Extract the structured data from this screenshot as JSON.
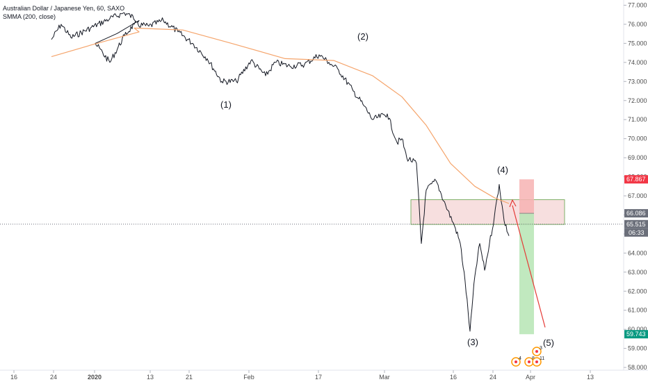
{
  "header": {
    "symbol_title": "Australian Dollar / Japanese Yen, 60, SAXO",
    "indicator": "SMMA (200, close)"
  },
  "colors": {
    "price": "#131722",
    "smma": "#f5a46b",
    "stop_zone": "#f7b3b3",
    "target_zone": "#b6e5b4",
    "entry_box_fill": "#f6d9d9",
    "entry_box_stroke": "#7fb069",
    "projection": "#e53935",
    "tag_red": "#f23645",
    "tag_green": "#089981",
    "tag_grey": "#6b6f7a"
  },
  "chart_data": {
    "type": "line",
    "title": "Australian Dollar / Japanese Yen, 60, SAXO",
    "xlabel": "",
    "ylabel": "",
    "ylim": [
      57.8,
      77.3
    ],
    "grid": false,
    "x_ticks": [
      "16",
      "24",
      "2020",
      "13",
      "21",
      "Feb",
      "17",
      "Mar",
      "16",
      "24",
      "Apr",
      "13"
    ],
    "y_ticks": [
      "77.000",
      "76.000",
      "75.000",
      "74.000",
      "73.000",
      "72.000",
      "71.000",
      "70.000",
      "69.000",
      "68.000",
      "67.000",
      "66.000",
      "65.000",
      "64.000",
      "63.000",
      "62.000",
      "61.000",
      "60.000",
      "59.000",
      "58.000"
    ],
    "series": [
      {
        "name": "",
        "role": "price",
        "x": [
          "Dec 12",
          "Dec 14",
          "Dec 16",
          "Dec 20",
          "Dec 24",
          "Dec 27",
          "Dec 30",
          "Jan 2",
          "Jan 5",
          "Jan 8",
          "Jan 10",
          "Jan 13",
          "Jan 16",
          "Jan 19",
          "Jan 22",
          "Jan 25",
          "Jan 28",
          "Jan 31",
          "Feb 3",
          "Feb 6",
          "Feb 8",
          "Feb 11",
          "Feb 14",
          "Feb 17",
          "Feb 19",
          "Feb 21",
          "Feb 24",
          "Feb 26",
          "Feb 28",
          "Mar 2",
          "Mar 4",
          "Mar 5",
          "Mar 6",
          "Mar 8",
          "Mar 9",
          "Mar 10",
          "Mar 12",
          "Mar 14",
          "Mar 16",
          "Mar 17",
          "Mar 18",
          "Mar 19",
          "Mar 20",
          "Mar 21",
          "Mar 22",
          "Mar 23",
          "Mar 24",
          "Mar 25",
          "Mar 26",
          "Mar 27"
        ],
        "values": [
          75.2,
          76.0,
          75.3,
          75.8,
          76.3,
          76.6,
          76.2,
          75.0,
          74.0,
          75.4,
          76.0,
          75.9,
          76.2,
          75.6,
          75.0,
          74.2,
          73.0,
          73.0,
          74.1,
          73.3,
          74.0,
          73.8,
          73.9,
          74.4,
          74.0,
          73.6,
          72.5,
          71.8,
          71.0,
          71.3,
          69.8,
          70.0,
          69.0,
          68.7,
          64.5,
          67.3,
          67.8,
          66.5,
          65.3,
          64.5,
          62.5,
          59.9,
          62.8,
          64.5,
          63.1,
          64.5,
          65.9,
          67.6,
          65.7,
          64.9
        ]
      },
      {
        "name": "SMMA (200, close)",
        "role": "smma",
        "x": [
          "Dec 12",
          "Dec 20",
          "Dec 30",
          "Jan 10",
          "Jan 20",
          "Jan 30",
          "Feb 10",
          "Feb 20",
          "Feb 28",
          "Mar 5",
          "Mar 10",
          "Mar 15",
          "Mar 20",
          "Mar 24",
          "Mar 27"
        ],
        "values": [
          74.3,
          74.9,
          75.6,
          75.8,
          75.7,
          75.0,
          74.2,
          74.1,
          73.3,
          72.2,
          70.7,
          68.7,
          67.5,
          66.9,
          66.6
        ]
      }
    ],
    "wave_labels": [
      "(1)",
      "(2)",
      "(3)",
      "(4)",
      "(5)"
    ],
    "price_tags": [
      {
        "value": 67.867,
        "label": "67.867",
        "color": "red"
      },
      {
        "value": 66.086,
        "label": "66.086",
        "color": "grey"
      },
      {
        "value": 65.515,
        "label": "65.515",
        "color": "grey"
      },
      {
        "countdown": "06:33"
      },
      {
        "value": 59.743,
        "label": "59.743",
        "color": "green"
      }
    ],
    "position": {
      "entry": 66.086,
      "stop": 67.867,
      "target": 59.743
    },
    "current_price": 65.515,
    "entry_zone": {
      "top": 66.8,
      "bottom": 65.5
    },
    "events": [
      "4",
      "8",
      "3",
      "11"
    ]
  }
}
